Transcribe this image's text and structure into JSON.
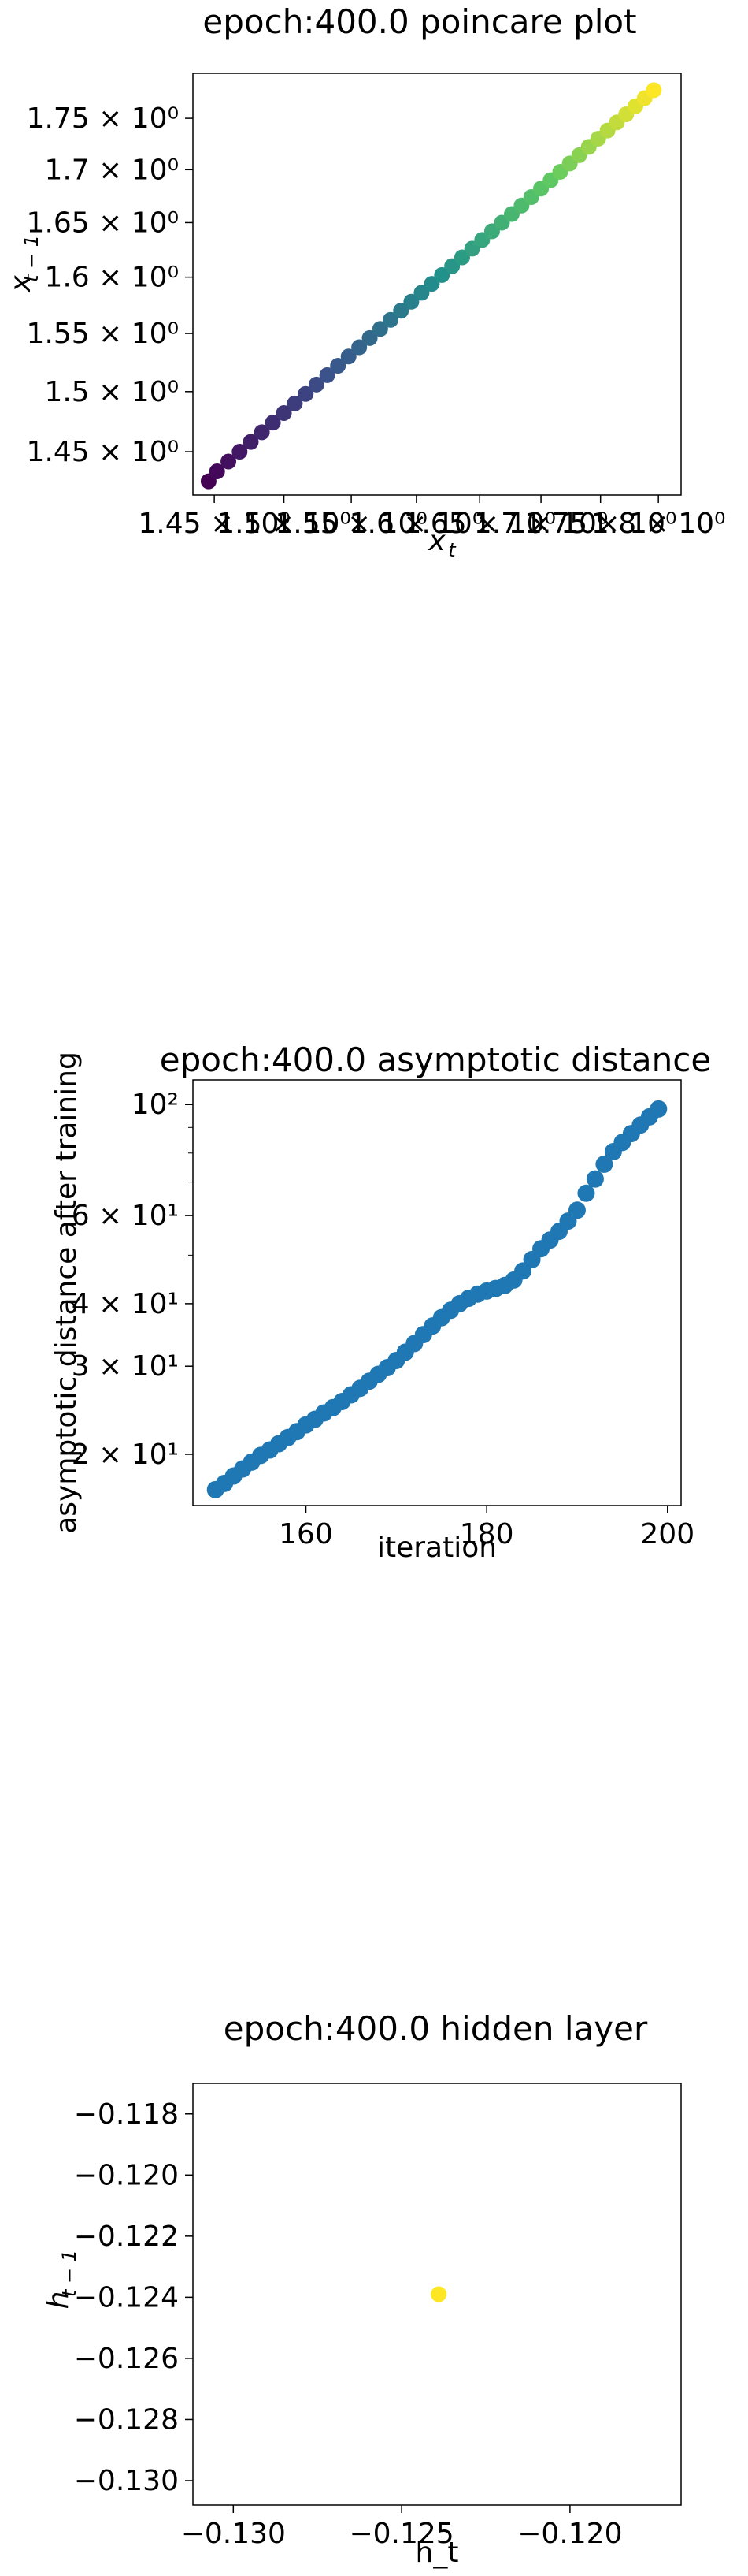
{
  "chart_data": [
    {
      "type": "scatter",
      "title": "epoch:400.0 poincare plot",
      "xlabel": "x_t",
      "ylabel": "x_{t-1}",
      "xscale": "log",
      "yscale": "log",
      "xlim": [
        1.435,
        1.82
      ],
      "ylim": [
        1.415,
        1.795
      ],
      "xticks": [
        {
          "value": 1.45,
          "label": "1.45 × 10⁰"
        },
        {
          "value": 1.5,
          "label": "1.5 × 10⁰"
        },
        {
          "value": 1.55,
          "label": "1.55 × 10⁰"
        },
        {
          "value": 1.6,
          "label": "1.6 × 10⁰"
        },
        {
          "value": 1.65,
          "label": "1.65 × 10⁰"
        },
        {
          "value": 1.7,
          "label": "1.7 × 10⁰"
        },
        {
          "value": 1.75,
          "label": "1.75 × 10⁰"
        },
        {
          "value": 1.8,
          "label": "1.8 × 10⁰"
        }
      ],
      "yticks": [
        {
          "value": 1.45,
          "label": "1.45 × 10⁰"
        },
        {
          "value": 1.5,
          "label": "1.5 × 10⁰"
        },
        {
          "value": 1.55,
          "label": "1.55 × 10⁰"
        },
        {
          "value": 1.6,
          "label": "1.6 × 10⁰"
        },
        {
          "value": 1.65,
          "label": "1.65 × 10⁰"
        },
        {
          "value": 1.7,
          "label": "1.7 × 10⁰"
        },
        {
          "value": 1.75,
          "label": "1.75 × 10⁰"
        }
      ],
      "colormap": "viridis",
      "marker_color": "#440154",
      "points": [
        [
          1.446,
          1.426
        ],
        [
          1.452,
          1.434
        ],
        [
          1.46,
          1.442
        ],
        [
          1.468,
          1.45
        ],
        [
          1.476,
          1.458
        ],
        [
          1.484,
          1.466
        ],
        [
          1.492,
          1.474
        ],
        [
          1.5,
          1.482
        ],
        [
          1.508,
          1.49
        ],
        [
          1.516,
          1.498
        ],
        [
          1.524,
          1.506
        ],
        [
          1.532,
          1.514
        ],
        [
          1.54,
          1.522
        ],
        [
          1.548,
          1.53
        ],
        [
          1.556,
          1.538
        ],
        [
          1.564,
          1.546
        ],
        [
          1.572,
          1.554
        ],
        [
          1.58,
          1.562
        ],
        [
          1.588,
          1.57
        ],
        [
          1.596,
          1.578
        ],
        [
          1.604,
          1.586
        ],
        [
          1.612,
          1.594
        ],
        [
          1.62,
          1.602
        ],
        [
          1.628,
          1.61
        ],
        [
          1.636,
          1.618
        ],
        [
          1.644,
          1.626
        ],
        [
          1.652,
          1.634
        ],
        [
          1.66,
          1.642
        ],
        [
          1.668,
          1.65
        ],
        [
          1.676,
          1.658
        ],
        [
          1.684,
          1.666
        ],
        [
          1.692,
          1.674
        ],
        [
          1.7,
          1.682
        ],
        [
          1.708,
          1.69
        ],
        [
          1.716,
          1.698
        ],
        [
          1.724,
          1.706
        ],
        [
          1.732,
          1.714
        ],
        [
          1.74,
          1.722
        ],
        [
          1.748,
          1.73
        ],
        [
          1.756,
          1.738
        ],
        [
          1.764,
          1.746
        ],
        [
          1.772,
          1.754
        ],
        [
          1.78,
          1.762
        ],
        [
          1.788,
          1.77
        ],
        [
          1.796,
          1.778
        ]
      ]
    },
    {
      "type": "scatter",
      "title": "epoch:400.0 asymptotic distance",
      "xlabel": "iteration",
      "ylabel": "asymptotic distance after training",
      "xscale": "linear",
      "yscale": "log",
      "xlim": [
        147.5,
        201.5
      ],
      "ylim": [
        15.8,
        112
      ],
      "xticks": [
        {
          "value": 160,
          "label": "160"
        },
        {
          "value": 180,
          "label": "180"
        },
        {
          "value": 200,
          "label": "200"
        }
      ],
      "yticks": [
        {
          "value": 20,
          "label": "2 × 10¹"
        },
        {
          "value": 30,
          "label": "3 × 10¹"
        },
        {
          "value": 40,
          "label": "4 × 10¹"
        },
        {
          "value": 60,
          "label": "6 × 10¹"
        },
        {
          "value": 100,
          "label": "10²"
        }
      ],
      "minor_yticks": [
        50,
        70,
        80,
        90
      ],
      "marker_color": "#1f77b4",
      "x": [
        150,
        151,
        152,
        153,
        154,
        155,
        156,
        157,
        158,
        159,
        160,
        161,
        162,
        163,
        164,
        165,
        166,
        167,
        168,
        169,
        170,
        171,
        172,
        173,
        174,
        175,
        176,
        177,
        178,
        179,
        180,
        181,
        182,
        183,
        184,
        185,
        186,
        187,
        188,
        189,
        190,
        191,
        192,
        193,
        194,
        195,
        196,
        197,
        198,
        199
      ],
      "y": [
        17.0,
        17.5,
        18.1,
        18.7,
        19.3,
        19.9,
        20.4,
        21.0,
        21.6,
        22.2,
        22.9,
        23.5,
        24.2,
        24.8,
        25.5,
        26.3,
        27.1,
        28.0,
        28.9,
        29.8,
        30.8,
        32.0,
        33.3,
        34.7,
        36.1,
        37.5,
        38.8,
        40.0,
        41.0,
        41.8,
        42.4,
        42.9,
        43.5,
        44.6,
        46.5,
        49.0,
        51.5,
        53.6,
        55.8,
        58.5,
        61.5,
        66.5,
        71.0,
        76.0,
        80.5,
        84.0,
        87.5,
        91.0,
        94.5,
        98.0
      ]
    },
    {
      "type": "scatter",
      "title": "epoch:400.0 hidden layer",
      "xlabel": "h_t",
      "ylabel": "h_{t-1}",
      "xscale": "linear",
      "yscale": "linear",
      "xlim": [
        -0.1312,
        -0.1167
      ],
      "ylim": [
        -0.1308,
        -0.117
      ],
      "xticks": [
        {
          "value": -0.13,
          "label": "−0.130"
        },
        {
          "value": -0.125,
          "label": "−0.125"
        },
        {
          "value": -0.12,
          "label": "−0.120"
        }
      ],
      "yticks": [
        {
          "value": -0.118,
          "label": "−0.118"
        },
        {
          "value": -0.12,
          "label": "−0.120"
        },
        {
          "value": -0.122,
          "label": "−0.122"
        },
        {
          "value": -0.124,
          "label": "−0.124"
        },
        {
          "value": -0.126,
          "label": "−0.126"
        },
        {
          "value": -0.128,
          "label": "−0.128"
        },
        {
          "value": -0.13,
          "label": "−0.130"
        }
      ],
      "marker_color": "#fde725",
      "points": [
        [
          -0.1239,
          -0.1239
        ]
      ]
    }
  ]
}
